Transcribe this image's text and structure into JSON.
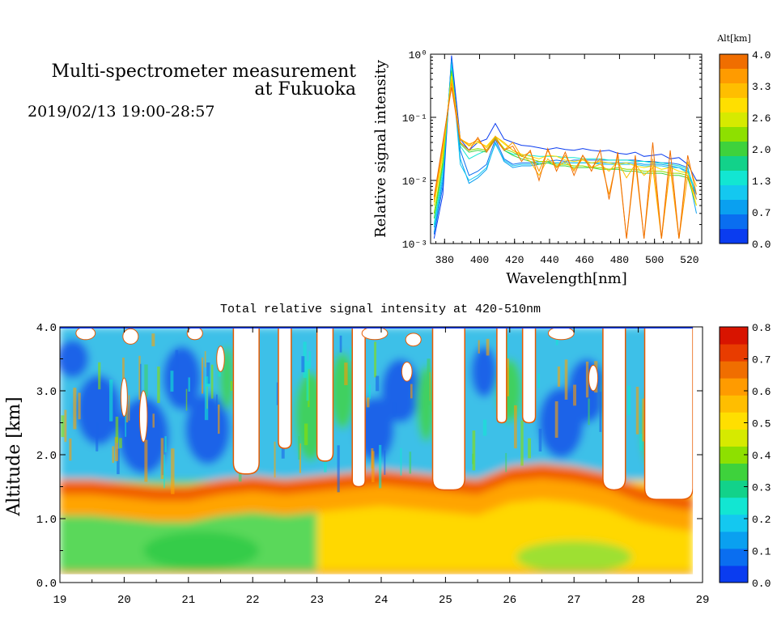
{
  "header": {
    "title_line1": "Multi-spectrometer measurement",
    "title_line2": "at Fukuoka",
    "datetime": "2019/02/13 19:00-28:57"
  },
  "chart_data": [
    {
      "type": "line",
      "xlabel": "Wavelength[nm]",
      "ylabel": "Relative signal intensity",
      "y_scale": "log",
      "xlim": [
        372,
        527
      ],
      "ylim": [
        0.001,
        1
      ],
      "x_ticks": [
        380,
        400,
        420,
        440,
        460,
        480,
        500,
        520
      ],
      "y_ticks": [
        {
          "value": 1,
          "label": "10⁰"
        },
        {
          "value": 0.1,
          "label": "10⁻¹"
        },
        {
          "value": 0.01,
          "label": "10⁻²"
        },
        {
          "value": 0.001,
          "label": "10⁻³"
        }
      ],
      "x": [
        374,
        379,
        384,
        389,
        394,
        399,
        404,
        409,
        414,
        419,
        424,
        429,
        434,
        439,
        444,
        449,
        454,
        459,
        464,
        469,
        474,
        479,
        484,
        489,
        494,
        499,
        504,
        509,
        514,
        519,
        524
      ],
      "colorbar": {
        "title": "Alt[km]",
        "tick_labels": [
          "4.0",
          "3.3",
          "2.6",
          "2.0",
          "1.3",
          "0.7",
          "0.0"
        ],
        "colors": [
          "#f06e00",
          "#ff9b00",
          "#ffbe00",
          "#ffdf00",
          "#d6ea00",
          "#8ee000",
          "#3ed23c",
          "#12d28a",
          "#12e6d2",
          "#14c8f0",
          "#0aa0f0",
          "#0a6ef0",
          "#0a3cf0"
        ]
      },
      "series": [
        {
          "color": "#0a3cf0",
          "values": [
            0.0012,
            0.006,
            0.95,
            0.045,
            0.03,
            0.04,
            0.045,
            0.08,
            0.045,
            0.04,
            0.036,
            0.035,
            0.033,
            0.031,
            0.033,
            0.031,
            0.03,
            0.032,
            0.03,
            0.029,
            0.03,
            0.027,
            0.026,
            0.028,
            0.024,
            0.025,
            0.026,
            0.022,
            0.023,
            0.018,
            0.01
          ]
        },
        {
          "color": "#0a6ef0",
          "values": [
            0.0014,
            0.008,
            0.85,
            0.03,
            0.012,
            0.014,
            0.018,
            0.045,
            0.022,
            0.018,
            0.019,
            0.019,
            0.02,
            0.02,
            0.021,
            0.02,
            0.021,
            0.021,
            0.021,
            0.021,
            0.021,
            0.021,
            0.021,
            0.021,
            0.02,
            0.02,
            0.019,
            0.019,
            0.018,
            0.016,
            0.005
          ]
        },
        {
          "color": "#0aa0f0",
          "values": [
            0.0015,
            0.01,
            0.8,
            0.022,
            0.009,
            0.011,
            0.015,
            0.04,
            0.02,
            0.016,
            0.017,
            0.017,
            0.018,
            0.019,
            0.019,
            0.019,
            0.019,
            0.019,
            0.019,
            0.019,
            0.019,
            0.019,
            0.019,
            0.019,
            0.018,
            0.018,
            0.018,
            0.017,
            0.016,
            0.014,
            0.003
          ]
        },
        {
          "color": "#14c8f0",
          "values": [
            0.0018,
            0.012,
            0.7,
            0.018,
            0.01,
            0.012,
            0.016,
            0.038,
            0.021,
            0.017,
            0.018,
            0.018,
            0.019,
            0.019,
            0.019,
            0.019,
            0.019,
            0.019,
            0.019,
            0.018,
            0.018,
            0.018,
            0.018,
            0.018,
            0.017,
            0.017,
            0.017,
            0.016,
            0.016,
            0.013,
            0.006
          ]
        },
        {
          "color": "#12e6d2",
          "values": [
            0.002,
            0.015,
            0.6,
            0.035,
            0.022,
            0.026,
            0.03,
            0.05,
            0.03,
            0.026,
            0.025,
            0.025,
            0.024,
            0.024,
            0.024,
            0.023,
            0.023,
            0.022,
            0.022,
            0.022,
            0.021,
            0.021,
            0.021,
            0.02,
            0.02,
            0.019,
            0.019,
            0.018,
            0.017,
            0.015,
            0.006
          ]
        },
        {
          "color": "#3ed23c",
          "values": [
            0.0025,
            0.018,
            0.55,
            0.038,
            0.028,
            0.03,
            0.028,
            0.048,
            0.03,
            0.025,
            0.022,
            0.02,
            0.018,
            0.019,
            0.017,
            0.017,
            0.016,
            0.016,
            0.016,
            0.015,
            0.015,
            0.015,
            0.014,
            0.014,
            0.013,
            0.013,
            0.013,
            0.012,
            0.012,
            0.011,
            0.004
          ]
        },
        {
          "color": "#8ee000",
          "values": [
            0.003,
            0.02,
            0.5,
            0.04,
            0.03,
            0.032,
            0.03,
            0.048,
            0.032,
            0.028,
            0.024,
            0.022,
            0.02,
            0.02,
            0.018,
            0.018,
            0.017,
            0.017,
            0.016,
            0.016,
            0.015,
            0.016,
            0.015,
            0.015,
            0.014,
            0.014,
            0.014,
            0.013,
            0.013,
            0.012,
            0.004
          ]
        },
        {
          "color": "#ffdf00",
          "values": [
            0.004,
            0.025,
            0.45,
            0.045,
            0.035,
            0.04,
            0.035,
            0.05,
            0.038,
            0.03,
            0.026,
            0.024,
            0.022,
            0.025,
            0.024,
            0.021,
            0.02,
            0.021,
            0.019,
            0.02,
            0.019,
            0.018,
            0.019,
            0.017,
            0.016,
            0.017,
            0.015,
            0.016,
            0.014,
            0.013,
            0.004
          ]
        },
        {
          "color": "#ffbe00",
          "values": [
            0.0045,
            0.03,
            0.4,
            0.045,
            0.038,
            0.042,
            0.033,
            0.05,
            0.04,
            0.03,
            0.025,
            0.02,
            0.012,
            0.022,
            0.016,
            0.02,
            0.015,
            0.022,
            0.016,
            0.018,
            0.014,
            0.02,
            0.011,
            0.018,
            0.012,
            0.016,
            0.0012,
            0.016,
            0.0012,
            0.02,
            0.008
          ]
        },
        {
          "color": "#ff9b00",
          "values": [
            0.005,
            0.035,
            0.35,
            0.046,
            0.036,
            0.045,
            0.03,
            0.05,
            0.03,
            0.04,
            0.024,
            0.028,
            0.014,
            0.03,
            0.016,
            0.025,
            0.014,
            0.025,
            0.016,
            0.022,
            0.006,
            0.025,
            0.0012,
            0.02,
            0.0012,
            0.022,
            0.0012,
            0.018,
            0.0012,
            0.012,
            0.005
          ]
        },
        {
          "color": "#f06e00",
          "values": [
            0.0055,
            0.04,
            0.3,
            0.04,
            0.03,
            0.048,
            0.028,
            0.045,
            0.03,
            0.035,
            0.02,
            0.03,
            0.01,
            0.032,
            0.014,
            0.028,
            0.012,
            0.025,
            0.014,
            0.03,
            0.005,
            0.028,
            0.0012,
            0.025,
            0.0012,
            0.04,
            0.0012,
            0.03,
            0.0012,
            0.025,
            0.006
          ]
        }
      ]
    },
    {
      "type": "heatmap",
      "title": "Total relative signal intensity at 420-510nm",
      "xlabel": "",
      "ylabel": "Altitude [km]",
      "xlim": [
        19,
        29
      ],
      "ylim": [
        0,
        4.0
      ],
      "data_end_x": 28.85,
      "x_ticks": [
        19,
        20,
        21,
        22,
        23,
        24,
        25,
        26,
        27,
        28,
        29
      ],
      "y_ticks": [
        "0.0",
        "1.0",
        "2.0",
        "3.0",
        "4.0"
      ],
      "colorbar": {
        "range": [
          0,
          0.8
        ],
        "tick_labels": [
          "0.8",
          "0.7",
          "0.6",
          "0.5",
          "0.4",
          "0.3",
          "0.2",
          "0.1",
          "0.0"
        ],
        "colors": [
          "#0a3cf0",
          "#0a6ef0",
          "#0aa0f0",
          "#14c8f0",
          "#12e6d2",
          "#12d28a",
          "#3ed23c",
          "#8ee000",
          "#d6ea00",
          "#ffdf00",
          "#ffbe00",
          "#ff9b00",
          "#f06e00",
          "#e83c00",
          "#d81400"
        ]
      },
      "cloud_base_km": [
        {
          "x": 19.0,
          "base": 1.5
        },
        {
          "x": 19.5,
          "base": 1.5
        },
        {
          "x": 20.0,
          "base": 1.45
        },
        {
          "x": 20.5,
          "base": 1.4
        },
        {
          "x": 21.0,
          "base": 1.4
        },
        {
          "x": 21.5,
          "base": 1.5
        },
        {
          "x": 22.0,
          "base": 1.55
        },
        {
          "x": 22.5,
          "base": 1.5
        },
        {
          "x": 23.0,
          "base": 1.55
        },
        {
          "x": 23.5,
          "base": 1.6
        },
        {
          "x": 24.0,
          "base": 1.65
        },
        {
          "x": 24.5,
          "base": 1.6
        },
        {
          "x": 25.0,
          "base": 1.55
        },
        {
          "x": 25.5,
          "base": 1.5
        },
        {
          "x": 26.0,
          "base": 1.7
        },
        {
          "x": 26.5,
          "base": 1.75
        },
        {
          "x": 27.0,
          "base": 1.7
        },
        {
          "x": 27.5,
          "base": 1.6
        },
        {
          "x": 28.0,
          "base": 1.4
        },
        {
          "x": 28.5,
          "base": 1.3
        },
        {
          "x": 28.85,
          "base": 1.25
        }
      ],
      "missing_columns_km": [
        {
          "x0": 21.7,
          "x1": 22.1,
          "bottom": 1.7
        },
        {
          "x0": 22.4,
          "x1": 22.6,
          "bottom": 2.1
        },
        {
          "x0": 23.0,
          "x1": 23.25,
          "bottom": 1.9
        },
        {
          "x0": 23.55,
          "x1": 23.75,
          "bottom": 1.5
        },
        {
          "x0": 24.8,
          "x1": 25.3,
          "bottom": 1.45
        },
        {
          "x0": 25.8,
          "x1": 25.95,
          "bottom": 2.5
        },
        {
          "x0": 26.2,
          "x1": 26.4,
          "bottom": 2.5
        },
        {
          "x0": 27.45,
          "x1": 27.8,
          "bottom": 1.45
        },
        {
          "x0": 28.1,
          "x1": 28.85,
          "bottom": 1.3
        }
      ]
    }
  ]
}
